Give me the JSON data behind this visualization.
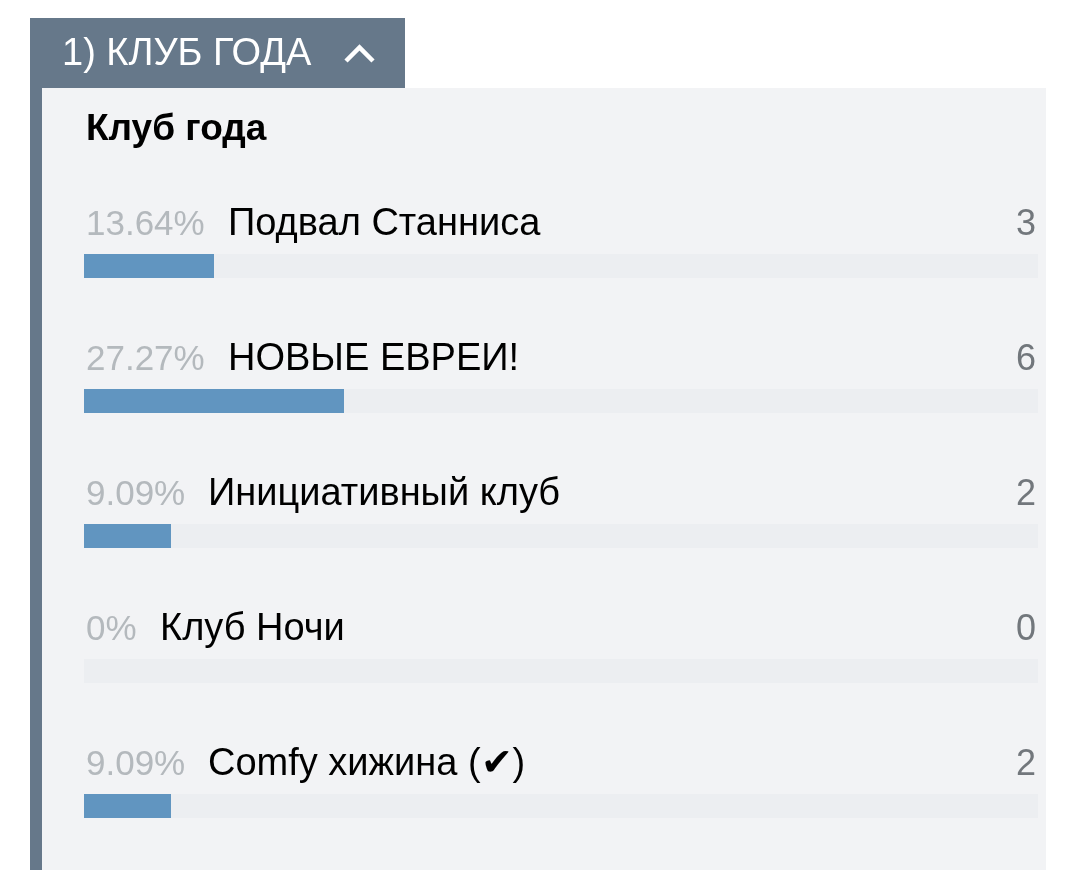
{
  "chart_data": {
    "type": "bar",
    "orientation": "horizontal",
    "title": "1) КЛУБ ГОДА",
    "subtitle": "Клуб года",
    "categories": [
      "Подвал Станниса",
      "НОВЫЕ ЕВРЕИ!",
      "Инициативный клуб",
      "Клуб Ночи",
      "Comfy хижина (✔)"
    ],
    "values": [
      13.64,
      27.27,
      9.09,
      0,
      9.09
    ],
    "value_labels": [
      "13.64%",
      "27.27%",
      "9.09%",
      "0%",
      "9.09%"
    ],
    "color": "#6195c0",
    "xlim": [
      0,
      100
    ],
    "tick_labels": false,
    "grid": "y",
    "annotations": [
      "3",
      "6",
      "2",
      "0",
      "2"
    ]
  }
}
